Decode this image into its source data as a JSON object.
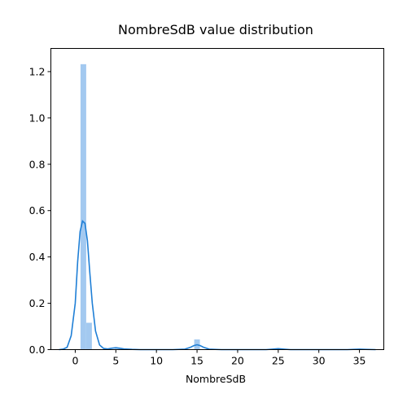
{
  "chart_data": {
    "type": "bar",
    "title": "NombreSdB value distribution",
    "xlabel": "NombreSdB",
    "ylabel": "",
    "xlim": [
      -3.0,
      38.0
    ],
    "ylim": [
      0,
      1.3
    ],
    "xticks": [
      0,
      5,
      10,
      15,
      20,
      25,
      30,
      35
    ],
    "yticks": [
      0.0,
      0.2,
      0.4,
      0.6,
      0.8,
      1.0,
      1.2
    ],
    "grid": false,
    "series": [
      {
        "kind": "histogram",
        "color": "#a3c9f0",
        "bin_width": 0.7,
        "bins": [
          {
            "x0": 0.65,
            "value": 1.232
          },
          {
            "x0": 1.35,
            "value": 0.116
          },
          {
            "x0": 4.85,
            "value": 0.004
          },
          {
            "x0": 14.65,
            "value": 0.044
          },
          {
            "x0": 24.65,
            "value": 0.003
          },
          {
            "x0": 34.45,
            "value": 0.003
          }
        ]
      },
      {
        "kind": "kde",
        "color": "#1f7fd6",
        "points": [
          [
            -2.0,
            0.0
          ],
          [
            -1.5,
            0.002
          ],
          [
            -1.0,
            0.01
          ],
          [
            -0.5,
            0.06
          ],
          [
            0.0,
            0.2
          ],
          [
            0.3,
            0.38
          ],
          [
            0.6,
            0.51
          ],
          [
            0.9,
            0.555
          ],
          [
            1.2,
            0.545
          ],
          [
            1.5,
            0.47
          ],
          [
            1.8,
            0.33
          ],
          [
            2.1,
            0.2
          ],
          [
            2.5,
            0.08
          ],
          [
            3.0,
            0.02
          ],
          [
            3.5,
            0.005
          ],
          [
            4.0,
            0.003
          ],
          [
            4.5,
            0.006
          ],
          [
            5.0,
            0.008
          ],
          [
            5.5,
            0.006
          ],
          [
            6.0,
            0.003
          ],
          [
            7.0,
            0.001
          ],
          [
            8.0,
            0.0
          ],
          [
            12.0,
            0.0
          ],
          [
            13.5,
            0.002
          ],
          [
            14.2,
            0.01
          ],
          [
            14.6,
            0.017
          ],
          [
            15.0,
            0.021
          ],
          [
            15.4,
            0.017
          ],
          [
            15.8,
            0.01
          ],
          [
            16.5,
            0.002
          ],
          [
            18.0,
            0.0
          ],
          [
            23.5,
            0.0
          ],
          [
            24.3,
            0.002
          ],
          [
            25.0,
            0.004
          ],
          [
            25.7,
            0.002
          ],
          [
            26.5,
            0.0
          ],
          [
            33.5,
            0.0
          ],
          [
            34.3,
            0.001
          ],
          [
            35.0,
            0.002
          ],
          [
            35.7,
            0.001
          ],
          [
            37.0,
            0.0
          ]
        ]
      }
    ]
  }
}
